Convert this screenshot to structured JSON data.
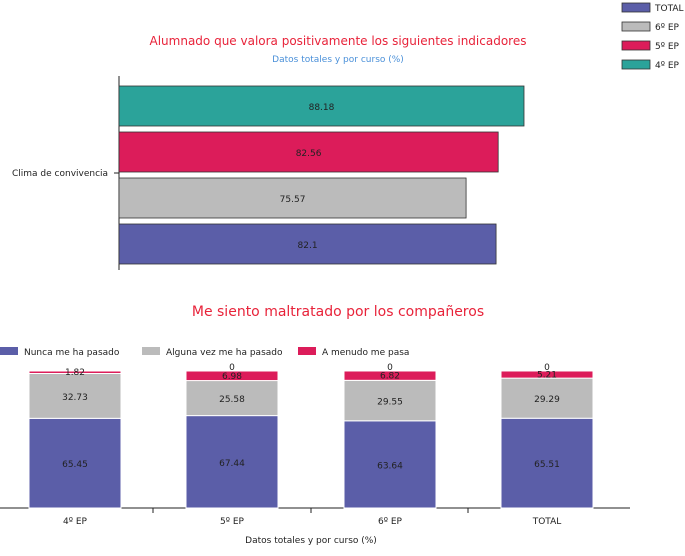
{
  "chart_data": [
    {
      "type": "bar",
      "orientation": "horizontal",
      "title": "Alumnado que valora positivamente los siguientes indicadores",
      "subtitle": "Datos totales y por curso (%)",
      "categories": [
        "Clima de convivencia"
      ],
      "series": [
        {
          "name": "4º EP",
          "values": [
            88.18
          ],
          "color": "#2ba39a"
        },
        {
          "name": "5º EP",
          "values": [
            82.56
          ],
          "color": "#dc1c5a"
        },
        {
          "name": "6º EP",
          "values": [
            75.57
          ],
          "color": "#bbbbbb"
        },
        {
          "name": "TOTAL",
          "values": [
            82.1
          ],
          "color": "#5b5ea8"
        }
      ],
      "legend_position": "top-right",
      "xlim": [
        0,
        88.18
      ],
      "grid": false
    },
    {
      "type": "bar",
      "stacked": true,
      "title": "Me siento maltratado por los compañeros",
      "xlabel": "Datos totales y por curso (%)",
      "categories": [
        "4º EP",
        "5º EP",
        "6º EP",
        "TOTAL"
      ],
      "series": [
        {
          "name": "Nunca me ha pasado",
          "values": [
            65.45,
            67.44,
            63.64,
            65.51
          ],
          "labels": [
            "65.45",
            "67.44",
            "63.64",
            "65.51"
          ],
          "color": "#5b5ea8"
        },
        {
          "name": "Alguna vez me ha pasado",
          "values": [
            32.73,
            25.58,
            29.55,
            29.29
          ],
          "labels": [
            "32.73",
            "25.58",
            "29.55",
            "29.29"
          ],
          "color": "#bbbbbb"
        },
        {
          "name": "A menudo me pasa",
          "values": [
            1.82,
            6.98,
            6.82,
            5.21
          ],
          "labels": [
            "1.82",
            "6.98",
            "6.82",
            "5.21"
          ],
          "color": "#dc1c5a"
        },
        {
          "name": "",
          "values": [
            0,
            0,
            0,
            0
          ],
          "labels": [
            "",
            "0",
            "0",
            "0"
          ],
          "color": "#ffffff"
        }
      ],
      "legend_position": "top",
      "ylim": [
        0,
        100
      ],
      "grid": false
    }
  ]
}
